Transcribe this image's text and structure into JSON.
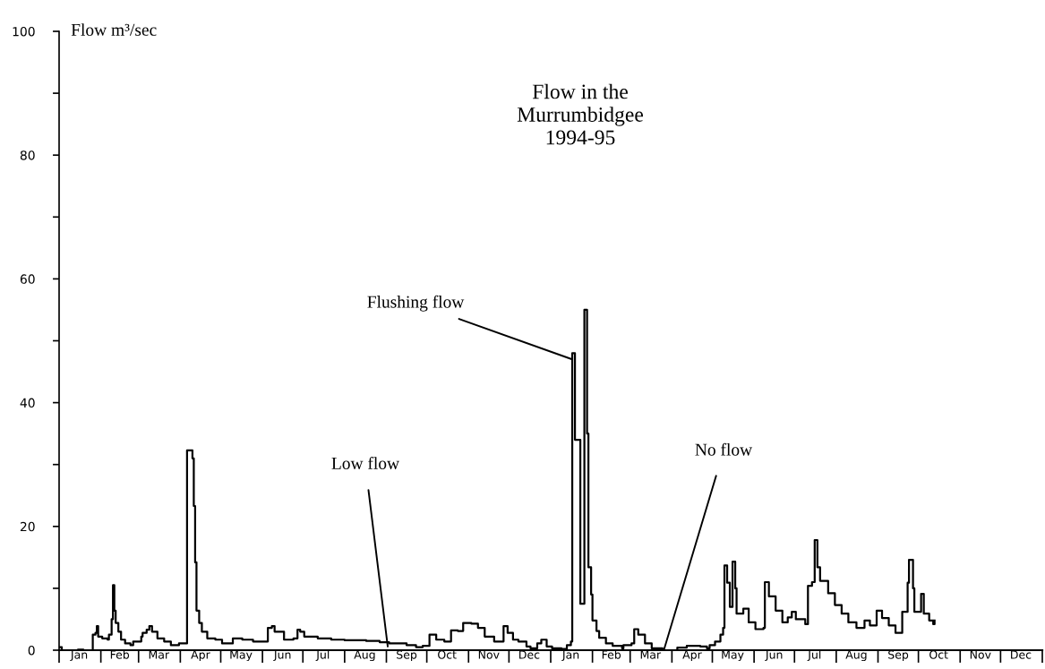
{
  "chart_data": {
    "type": "step",
    "title": "Flow in the\nMurrumbidgee\n1994-95",
    "ylabel": "Flow m³/sec",
    "xlim": [
      "1994-01-01",
      "1996-01-01"
    ],
    "ylim": [
      0,
      100
    ],
    "yticks": [
      0,
      {
        "value": 10,
        "label": null
      },
      20,
      {
        "value": 30,
        "label": null
      },
      40,
      {
        "value": 50,
        "label": null
      },
      60,
      {
        "value": 70,
        "label": null
      },
      80,
      {
        "value": 90,
        "label": null
      },
      100
    ],
    "xticks": [
      {
        "value": "1994-01-01",
        "label": null
      },
      {
        "value": "1994-01-16",
        "label": "Jan"
      },
      {
        "value": "1994-02-01",
        "label": null
      },
      {
        "value": "1994-02-15",
        "label": "Feb"
      },
      {
        "value": "1994-03-01",
        "label": null
      },
      {
        "value": "1994-03-16",
        "label": "Mar"
      },
      {
        "value": "1994-04-01",
        "label": null
      },
      {
        "value": "1994-04-16",
        "label": "Apr"
      },
      {
        "value": "1994-05-01",
        "label": null
      },
      {
        "value": "1994-05-16",
        "label": "May"
      },
      {
        "value": "1994-06-01",
        "label": null
      },
      {
        "value": "1994-06-16",
        "label": "Jun"
      },
      {
        "value": "1994-07-01",
        "label": null
      },
      {
        "value": "1994-07-16",
        "label": "Jul"
      },
      {
        "value": "1994-08-01",
        "label": null
      },
      {
        "value": "1994-08-16",
        "label": "Aug"
      },
      {
        "value": "1994-09-01",
        "label": null
      },
      {
        "value": "1994-09-16",
        "label": "Sep"
      },
      {
        "value": "1994-10-01",
        "label": null
      },
      {
        "value": "1994-10-16",
        "label": "Oct"
      },
      {
        "value": "1994-11-01",
        "label": null
      },
      {
        "value": "1994-11-16",
        "label": "Nov"
      },
      {
        "value": "1994-12-01",
        "label": null
      },
      {
        "value": "1994-12-16",
        "label": "Dec"
      },
      {
        "value": "1995-01-01",
        "label": null
      },
      {
        "value": "1995-01-16",
        "label": "Jan"
      },
      {
        "value": "1995-02-01",
        "label": null
      },
      {
        "value": "1995-02-15",
        "label": "Feb"
      },
      {
        "value": "1995-03-01",
        "label": null
      },
      {
        "value": "1995-03-16",
        "label": "Mar"
      },
      {
        "value": "1995-04-01",
        "label": null
      },
      {
        "value": "1995-04-16",
        "label": "Apr"
      },
      {
        "value": "1995-05-01",
        "label": null
      },
      {
        "value": "1995-05-16",
        "label": "May"
      },
      {
        "value": "1995-06-01",
        "label": null
      },
      {
        "value": "1995-06-16",
        "label": "Jun"
      },
      {
        "value": "1995-07-01",
        "label": null
      },
      {
        "value": "1995-07-16",
        "label": "Jul"
      },
      {
        "value": "1995-08-01",
        "label": null
      },
      {
        "value": "1995-08-16",
        "label": "Aug"
      },
      {
        "value": "1995-09-01",
        "label": null
      },
      {
        "value": "1995-09-16",
        "label": "Sep"
      },
      {
        "value": "1995-10-01",
        "label": null
      },
      {
        "value": "1995-10-16",
        "label": "Oct"
      },
      {
        "value": "1995-11-01",
        "label": null
      },
      {
        "value": "1995-11-16",
        "label": "Nov"
      },
      {
        "value": "1995-12-01",
        "label": null
      },
      {
        "value": "1995-12-16",
        "label": "Dec"
      },
      {
        "value": "1996-01-01",
        "label": null
      }
    ],
    "grid": false,
    "legend": false,
    "line_style": "solid",
    "marker": "none",
    "series": [
      {
        "color": "#000000",
        "x": [
          "1994-01-01",
          "1994-01-03",
          "1994-01-15",
          "1994-01-19",
          "1994-01-26",
          "1994-01-28",
          "1994-01-29",
          "1994-01-30",
          "1994-02-02",
          "1994-02-06",
          "1994-02-07",
          "1994-02-09",
          "1994-02-10",
          "1994-02-11",
          "1994-02-12",
          "1994-02-14",
          "1994-02-16",
          "1994-02-19",
          "1994-02-23",
          "1994-02-25",
          "1994-02-28",
          "1994-03-03",
          "1994-03-04",
          "1994-03-07",
          "1994-03-09",
          "1994-03-11",
          "1994-03-15",
          "1994-03-20",
          "1994-03-25",
          "1994-03-31",
          "1994-04-06",
          "1994-04-10",
          "1994-04-11",
          "1994-04-12",
          "1994-04-13",
          "1994-04-15",
          "1994-04-17",
          "1994-04-21",
          "1994-04-27",
          "1994-05-02",
          "1994-05-10",
          "1994-05-17",
          "1994-05-25",
          "1994-06-02",
          "1994-06-05",
          "1994-06-08",
          "1994-06-10",
          "1994-06-17",
          "1994-06-24",
          "1994-06-27",
          "1994-06-29",
          "1994-07-02",
          "1994-07-12",
          "1994-07-22",
          "1994-08-01",
          "1994-08-17",
          "1994-08-27",
          "1994-09-03",
          "1994-09-16",
          "1994-09-23",
          "1994-09-28",
          "1994-10-03",
          "1994-10-08",
          "1994-10-14",
          "1994-10-19",
          "1994-10-24",
          "1994-10-28",
          "1994-11-03",
          "1994-11-08",
          "1994-11-13",
          "1994-11-20",
          "1994-11-27",
          "1994-11-30",
          "1994-12-04",
          "1994-12-08",
          "1994-12-14",
          "1994-12-17",
          "1994-12-22",
          "1994-12-25",
          "1994-12-29",
          "1995-01-02",
          "1995-01-09",
          "1995-01-13",
          "1995-01-16",
          "1995-01-17",
          "1995-01-19",
          "1995-01-23",
          "1995-01-26",
          "1995-01-28",
          "1995-01-29",
          "1995-01-31",
          "1995-02-01",
          "1995-02-04",
          "1995-02-06",
          "1995-02-11",
          "1995-02-16",
          "1995-02-23",
          "1995-02-24",
          "1995-03-02",
          "1995-03-04",
          "1995-03-07",
          "1995-03-12",
          "1995-03-17",
          "1995-03-25",
          "1995-03-31",
          "1995-04-05",
          "1995-04-12",
          "1995-04-22",
          "1995-04-27",
          "1995-04-29",
          "1995-05-03",
          "1995-05-07",
          "1995-05-09",
          "1995-05-10",
          "1995-05-12",
          "1995-05-14",
          "1995-05-16",
          "1995-05-18",
          "1995-05-19",
          "1995-05-24",
          "1995-05-28",
          "1995-06-02",
          "1995-06-08",
          "1995-06-09",
          "1995-06-12",
          "1995-06-17",
          "1995-06-22",
          "1995-06-26",
          "1995-06-29",
          "1995-07-02",
          "1995-07-09",
          "1995-07-11",
          "1995-07-14",
          "1995-07-16",
          "1995-07-18",
          "1995-07-20",
          "1995-07-26",
          "1995-07-31",
          "1995-08-05",
          "1995-08-10",
          "1995-08-16",
          "1995-08-22",
          "1995-08-26",
          "1995-08-31",
          "1995-09-04",
          "1995-09-09",
          "1995-09-14",
          "1995-09-19",
          "1995-09-23",
          "1995-09-24",
          "1995-09-27",
          "1995-09-28",
          "1995-10-03",
          "1995-10-05",
          "1995-10-09",
          "1995-10-12",
          "1995-10-13"
        ],
        "values": [
          0.5,
          0,
          0.1,
          0,
          2.5,
          2.8,
          3.9,
          2.2,
          1.9,
          1.7,
          2.5,
          5.0,
          10.5,
          6.4,
          4.4,
          3.0,
          1.7,
          1.1,
          0.8,
          1.4,
          1.4,
          2.2,
          2.8,
          3.3,
          3.9,
          3.0,
          1.9,
          1.4,
          0.8,
          1.1,
          32.3,
          31.0,
          23.3,
          14.2,
          6.4,
          4.4,
          3.0,
          1.9,
          1.7,
          1.1,
          1.9,
          1.7,
          1.4,
          1.4,
          3.6,
          3.9,
          3.0,
          1.7,
          1.9,
          3.3,
          3.0,
          2.2,
          1.9,
          1.7,
          1.6,
          1.5,
          1.3,
          1.1,
          0.8,
          0.5,
          0.7,
          2.5,
          1.7,
          1.4,
          3.2,
          3.1,
          4.4,
          4.3,
          3.6,
          2.2,
          1.4,
          3.9,
          2.8,
          1.7,
          1.4,
          0.6,
          0.3,
          1.1,
          1.7,
          0.6,
          0.3,
          0.2,
          0.8,
          1.4,
          48.0,
          34.0,
          7.5,
          55.0,
          35.0,
          13.4,
          9.0,
          4.8,
          3.1,
          2.0,
          1.1,
          0.7,
          0.3,
          0.8,
          1.1,
          3.4,
          2.5,
          1.1,
          0.3,
          0,
          0,
          0.4,
          0.7,
          0.6,
          0.3,
          0.8,
          1.4,
          2.5,
          3.6,
          13.7,
          10.9,
          7.0,
          14.3,
          10.0,
          5.9,
          6.7,
          4.5,
          3.4,
          3.6,
          11.0,
          8.7,
          6.4,
          4.5,
          5.3,
          6.2,
          5.0,
          4.2,
          10.4,
          11.0,
          17.8,
          13.4,
          11.2,
          9.2,
          7.3,
          5.9,
          4.5,
          3.6,
          4.8,
          4.0,
          6.4,
          5.2,
          4.0,
          2.8,
          6.2,
          10.9,
          14.6,
          10.0,
          6.2,
          9.1,
          5.9,
          4.8,
          4.2,
          4.8
        ]
      }
    ],
    "annotations": [
      {
        "text": "Flushing flow",
        "x": "1995-01-17",
        "y": 47
      },
      {
        "text": "Low flow",
        "x": "1994-09-02",
        "y": 0.6
      },
      {
        "text": "No flow",
        "x": "1995-03-26",
        "y": 0
      }
    ]
  }
}
